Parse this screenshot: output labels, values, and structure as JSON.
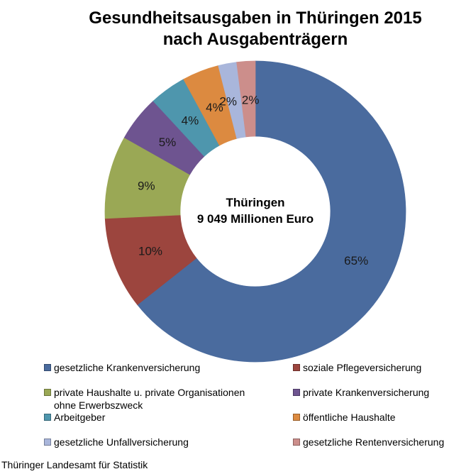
{
  "page": {
    "background": "#ffffff"
  },
  "title": {
    "line1": "Gesundheitsausgaben in Thüringen 2015",
    "line2": "nach Ausgabenträgern"
  },
  "footer": {
    "source": "Thüringer Landesamt für Statistik"
  },
  "chart_data": {
    "type": "pie",
    "subtype": "donut",
    "title": "Gesundheitsausgaben in Thüringen 2015 nach Ausgabenträgern",
    "unit": "%",
    "direction": "clockwise",
    "start_angle_deg": 0,
    "hole_ratio": 0.5,
    "legend_position": "bottom",
    "grid": false,
    "center_label": {
      "line1": "Thüringen",
      "line2": "9 049 Millionen Euro"
    },
    "categories": [
      "gesetzliche Krankenversicherung",
      "soziale Pflegeversicherung",
      "private Haushalte u. private Organisationen\nohne Erwerbszweck",
      "private Krankenversicherung",
      "Arbeitgeber",
      "öffentliche Haushalte",
      "gesetzliche Unfallversicherung",
      "gesetzliche Rentenversicherung"
    ],
    "values": [
      65,
      10,
      9,
      5,
      4,
      4,
      2,
      2
    ],
    "labels": [
      "65%",
      "10%",
      "9%",
      "5%",
      "4%",
      "4%",
      "2%",
      "2%"
    ],
    "colors": [
      "#4A6B9E",
      "#9C453E",
      "#9AA855",
      "#6E5490",
      "#4E96AD",
      "#DC8A40",
      "#A9B6DB",
      "#CC8E8B"
    ],
    "label_dx": [
      0,
      0,
      0,
      0,
      0,
      0,
      -9,
      3
    ]
  }
}
